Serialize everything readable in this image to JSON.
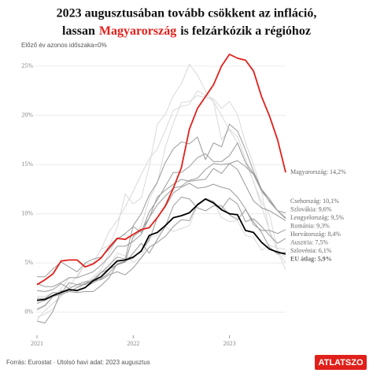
{
  "chart_data": {
    "type": "line",
    "title": {
      "line1": "2023 augusztusában tovább csökkent az infláció,",
      "line2_before": "lassan",
      "line2_highlight": "Magyarország",
      "line2_after": "is felzárkózik a régióhoz"
    },
    "y_label": "Előző év azonos időszaka=0%",
    "source": "Forrás: Eurostat · Utolsó havi adat: 2023 augusztus",
    "logo": "ATLATSZO",
    "categories": [
      "2021",
      null,
      null,
      null,
      null,
      null,
      null,
      null,
      null,
      null,
      null,
      null,
      "2022",
      null,
      null,
      null,
      null,
      null,
      null,
      null,
      null,
      null,
      null,
      null,
      "2023",
      null,
      null,
      null,
      null,
      null,
      null,
      null
    ],
    "ylim": [
      -2.5,
      27
    ],
    "yticks": [
      {
        "value": 0,
        "label": "0%"
      },
      {
        "value": 5,
        "label": "5%"
      },
      {
        "value": 10,
        "label": "10%"
      },
      {
        "value": 15,
        "label": "15%"
      },
      {
        "value": 20,
        "label": "20%"
      },
      {
        "value": 25,
        "label": "25%"
      }
    ],
    "grid": true,
    "series": [
      {
        "color": "#d9d9d9",
        "values": [
          -0.8,
          0.2,
          0.9,
          1.6,
          2.6,
          3.7,
          4.9,
          5.0,
          6.4,
          6.8,
          8.6,
          12.0,
          11.0,
          11.6,
          14.8,
          19.1,
          20.1,
          22.0,
          23.2,
          25.2,
          24.1,
          22.5,
          21.4,
          17.5,
          18.6,
          17.8,
          15.6,
          13.2,
          11.2,
          9.9,
          6.2,
          4.3
        ]
      },
      {
        "color": "#d9d9d9",
        "values": [
          0.2,
          0.6,
          1.6,
          2.4,
          3.5,
          3.5,
          4.9,
          5.0,
          6.4,
          8.2,
          9.3,
          10.7,
          12.3,
          14.0,
          15.6,
          16.6,
          18.5,
          20.5,
          20.9,
          21.1,
          22.5,
          22.0,
          21.4,
          20.0,
          18.5,
          17.2,
          15.2,
          13.3,
          10.7,
          8.3,
          6.2,
          5.0
        ]
      },
      {
        "color": "#d9d9d9",
        "values": [
          -0.5,
          -0.2,
          0.3,
          1.7,
          2.6,
          2.6,
          2.8,
          3.6,
          4.3,
          6.0,
          7.5,
          7.9,
          7.5,
          8.8,
          11.5,
          13.1,
          16.8,
          19.2,
          21.3,
          21.4,
          22.0,
          21.8,
          21.7,
          20.7,
          21.4,
          20.1,
          17.2,
          15.0,
          12.3,
          8.1,
          6.3,
          5.6
        ]
      },
      {
        "color": "#d9d9d9",
        "values": [
          1.6,
          1.6,
          2.0,
          2.1,
          2.4,
          2.1,
          3.1,
          3.4,
          4.1,
          4.6,
          6.0,
          5.7,
          5.1,
          5.5,
          7.6,
          7.8,
          8.7,
          8.2,
          8.5,
          8.8,
          10.9,
          11.6,
          11.3,
          9.6,
          9.2,
          9.3,
          7.8,
          7.6,
          6.3,
          6.8,
          6.5,
          6.4
        ]
      },
      {
        "color": "#9a9a9a",
        "values": [
          2.2,
          2.1,
          2.3,
          2.9,
          2.4,
          2.8,
          3.1,
          3.1,
          4.0,
          4.8,
          5.6,
          5.4,
          8.8,
          10.0,
          11.9,
          13.2,
          15.2,
          16.6,
          17.3,
          17.1,
          17.8,
          15.5,
          17.2,
          16.8,
          19.1,
          18.4,
          16.5,
          14.3,
          12.5,
          11.2,
          10.3,
          10.1
        ],
        "value_labels": [
          null,
          null,
          null,
          null,
          null,
          null,
          null,
          null,
          null,
          null,
          null,
          null,
          null,
          null,
          null,
          null,
          null,
          null,
          null,
          null,
          null,
          null,
          null,
          null,
          null,
          null,
          null,
          null,
          null,
          null,
          null,
          "Csehország: 10,1%"
        ]
      },
      {
        "color": "#9a9a9a",
        "values": [
          0.9,
          1.2,
          1.6,
          1.8,
          2.1,
          2.5,
          2.9,
          3.3,
          4.0,
          4.4,
          4.8,
          5.1,
          7.7,
          8.3,
          9.6,
          10.9,
          11.8,
          12.6,
          12.8,
          13.4,
          13.6,
          14.5,
          15.1,
          15.0,
          15.1,
          15.4,
          14.8,
          14.0,
          12.3,
          11.3,
          10.3,
          9.6
        ],
        "value_labels": [
          null,
          null,
          null,
          null,
          null,
          null,
          null,
          null,
          null,
          null,
          null,
          null,
          null,
          null,
          null,
          null,
          null,
          null,
          null,
          null,
          null,
          null,
          null,
          null,
          null,
          null,
          null,
          null,
          null,
          null,
          null,
          "Szlovákia: 9,6%"
        ]
      },
      {
        "color": "#9a9a9a",
        "values": [
          3.6,
          3.6,
          4.4,
          5.1,
          4.6,
          4.1,
          5.0,
          5.4,
          5.6,
          6.4,
          7.4,
          8.0,
          8.7,
          8.1,
          10.2,
          11.4,
          12.8,
          14.2,
          14.2,
          14.8,
          15.7,
          16.1,
          15.3,
          15.3,
          15.9,
          17.2,
          15.2,
          14.1,
          12.5,
          11.5,
          10.3,
          9.5
        ],
        "value_labels": [
          null,
          null,
          null,
          null,
          null,
          null,
          null,
          null,
          null,
          null,
          null,
          null,
          null,
          null,
          null,
          null,
          null,
          null,
          null,
          null,
          null,
          null,
          null,
          null,
          null,
          null,
          null,
          null,
          null,
          null,
          null,
          "Lengyelország: 9,5%"
        ]
      },
      {
        "color": "#9a9a9a",
        "values": [
          2.9,
          2.6,
          2.6,
          3.0,
          3.5,
          3.5,
          3.8,
          4.1,
          4.8,
          5.6,
          6.7,
          6.7,
          7.2,
          7.9,
          9.6,
          11.7,
          12.4,
          13.0,
          13.5,
          13.3,
          13.4,
          13.5,
          14.6,
          14.1,
          15.1,
          14.5,
          12.9,
          11.3,
          10.6,
          10.3,
          9.8,
          9.3
        ],
        "value_labels": [
          null,
          null,
          null,
          null,
          null,
          null,
          null,
          null,
          null,
          null,
          null,
          null,
          null,
          null,
          null,
          null,
          null,
          null,
          null,
          null,
          null,
          null,
          null,
          null,
          null,
          null,
          null,
          null,
          null,
          null,
          null,
          "Románia: 9,3%"
        ]
      },
      {
        "color": "#9a9a9a",
        "values": [
          0.3,
          0.7,
          1.6,
          2.1,
          2.3,
          2.2,
          2.5,
          3.0,
          3.4,
          4.0,
          4.9,
          5.2,
          5.5,
          6.3,
          7.3,
          9.6,
          10.7,
          12.1,
          12.7,
          13.1,
          12.6,
          12.7,
          13.0,
          12.7,
          12.5,
          11.7,
          10.5,
          8.9,
          8.3,
          8.3,
          8.0,
          8.4
        ],
        "value_labels": [
          null,
          null,
          null,
          null,
          null,
          null,
          null,
          null,
          null,
          null,
          null,
          null,
          null,
          null,
          null,
          null,
          null,
          null,
          null,
          null,
          null,
          null,
          null,
          null,
          null,
          null,
          null,
          null,
          null,
          null,
          null,
          "Horvátország: 8,4%"
        ]
      },
      {
        "color": "#9a9a9a",
        "values": [
          1.4,
          1.4,
          2.0,
          1.9,
          3.0,
          2.8,
          2.8,
          3.2,
          3.3,
          3.8,
          4.1,
          3.8,
          4.5,
          5.5,
          6.6,
          7.1,
          7.7,
          8.7,
          9.4,
          9.3,
          11.0,
          11.5,
          11.2,
          10.5,
          11.6,
          11.0,
          9.2,
          9.5,
          8.7,
          7.8,
          7.0,
          7.5
        ],
        "value_labels": [
          null,
          null,
          null,
          null,
          null,
          null,
          null,
          null,
          null,
          null,
          null,
          null,
          null,
          null,
          null,
          null,
          null,
          null,
          null,
          null,
          null,
          null,
          null,
          null,
          null,
          null,
          null,
          null,
          null,
          null,
          null,
          "Ausztria: 7,5%"
        ]
      },
      {
        "color": "#9a9a9a",
        "values": [
          -0.9,
          -1.1,
          0.1,
          2.2,
          2.1,
          2.0,
          2.1,
          2.1,
          2.7,
          3.5,
          4.9,
          5.1,
          6.0,
          7.0,
          6.0,
          7.4,
          8.7,
          10.8,
          11.7,
          11.5,
          10.6,
          10.3,
          10.8,
          10.8,
          9.9,
          9.4,
          10.4,
          9.2,
          8.1,
          6.6,
          5.9,
          6.1
        ],
        "value_labels": [
          null,
          null,
          null,
          null,
          null,
          null,
          null,
          null,
          null,
          null,
          null,
          null,
          null,
          null,
          null,
          null,
          null,
          null,
          null,
          null,
          null,
          null,
          null,
          null,
          null,
          null,
          null,
          null,
          null,
          null,
          null,
          "Szlovénia: 6,1%"
        ]
      },
      {
        "color": "#000000",
        "values": [
          1.2,
          1.3,
          1.7,
          2.0,
          2.3,
          2.2,
          2.5,
          3.2,
          3.6,
          4.4,
          5.2,
          5.3,
          5.6,
          6.2,
          7.8,
          8.1,
          8.8,
          9.6,
          9.8,
          10.1,
          10.9,
          11.5,
          11.1,
          10.4,
          10.0,
          9.9,
          8.3,
          8.1,
          7.1,
          6.4,
          6.1,
          5.9
        ],
        "value_labels": [
          null,
          null,
          null,
          null,
          null,
          null,
          null,
          null,
          null,
          null,
          null,
          null,
          null,
          null,
          null,
          null,
          null,
          null,
          null,
          null,
          null,
          null,
          null,
          null,
          null,
          null,
          null,
          null,
          null,
          null,
          null,
          "EU átlag: 5,9%"
        ]
      },
      {
        "color": "#e0201b",
        "values": [
          2.8,
          3.3,
          3.9,
          5.2,
          5.3,
          5.3,
          4.6,
          4.9,
          5.5,
          6.6,
          7.5,
          7.4,
          7.9,
          8.4,
          8.6,
          9.6,
          10.8,
          12.6,
          14.7,
          18.6,
          20.7,
          21.9,
          23.1,
          25.0,
          26.2,
          25.8,
          25.6,
          24.5,
          21.9,
          19.9,
          17.5,
          14.2
        ],
        "value_labels": [
          null,
          null,
          null,
          null,
          null,
          null,
          null,
          null,
          null,
          null,
          null,
          null,
          null,
          null,
          null,
          null,
          null,
          null,
          null,
          null,
          null,
          null,
          null,
          null,
          null,
          null,
          null,
          null,
          null,
          null,
          null,
          "Magyarország: 14,2%"
        ]
      }
    ]
  }
}
